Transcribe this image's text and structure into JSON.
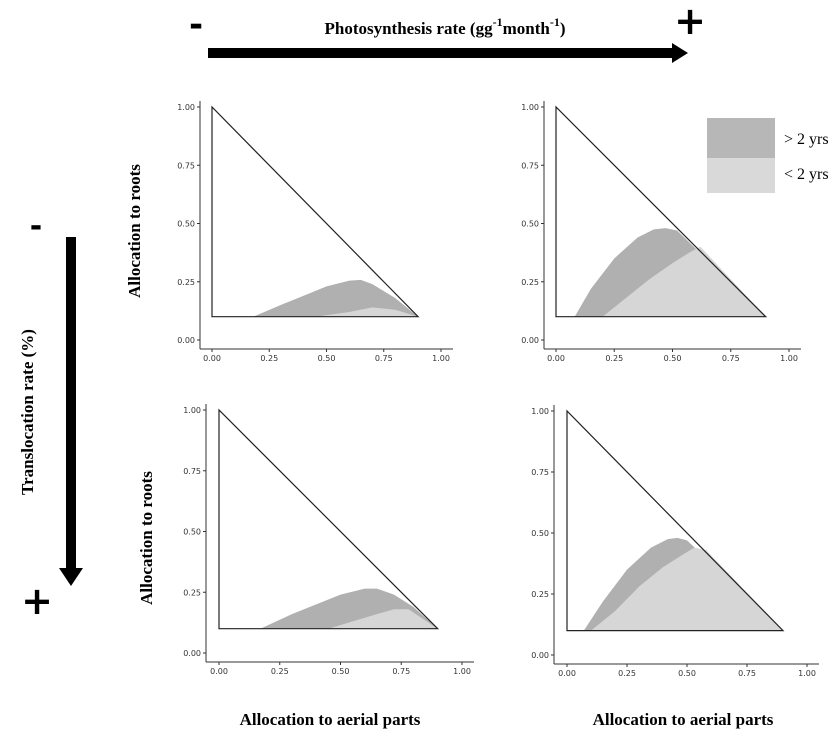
{
  "top_arrow": {
    "label": "Photosynthesis rate (gg",
    "sup1": "-1",
    "mid": "month",
    "sup2": "-1",
    "end": ")",
    "minus": "-",
    "plus": "+"
  },
  "left_arrow": {
    "label": "Translocation  rate (%)",
    "minus": "-",
    "plus": "+"
  },
  "y_label": "Allocation to roots",
  "x_label": "Allocation to aerial parts",
  "legend": {
    "items": [
      {
        "label": "> 2 yrs",
        "color": "#b7b7b7"
      },
      {
        "label": "< 2 yrs",
        "color": "#d9d9d9"
      }
    ]
  },
  "colors": {
    "older": "#b0b0b0",
    "younger": "#d6d6d6",
    "triangle": "#222222"
  },
  "chart_data": [
    {
      "type": "area",
      "panel": "top-left",
      "xlim": [
        0,
        1
      ],
      "ylim": [
        0,
        1
      ],
      "x_ticks": [
        "0.00",
        "0.25",
        "0.50",
        "0.75",
        "1.00"
      ],
      "y_ticks": [
        "0.00",
        "0.25",
        "0.50",
        "0.75",
        "1.00"
      ],
      "triangle": [
        [
          0,
          1.0
        ],
        [
          0,
          0.1
        ],
        [
          0.9,
          0.1
        ]
      ],
      "series": [
        {
          "name": "> 2 yrs",
          "x": [
            0.18,
            0.3,
            0.4,
            0.5,
            0.6,
            0.65,
            0.7,
            0.8,
            0.9
          ],
          "y": [
            0.1,
            0.15,
            0.19,
            0.23,
            0.255,
            0.258,
            0.24,
            0.18,
            0.1
          ]
        },
        {
          "name": "< 2 yrs",
          "x": [
            0.45,
            0.6,
            0.7,
            0.8,
            0.9
          ],
          "y": [
            0.1,
            0.12,
            0.14,
            0.13,
            0.1
          ]
        }
      ]
    },
    {
      "type": "area",
      "panel": "top-right",
      "xlim": [
        0,
        1
      ],
      "ylim": [
        0,
        1
      ],
      "x_ticks": [
        "0.00",
        "0.25",
        "0.50",
        "0.75",
        "1.00"
      ],
      "y_ticks": [
        "0.00",
        "0.25",
        "0.50",
        "0.75",
        "1.00"
      ],
      "triangle": [
        [
          0,
          1.0
        ],
        [
          0,
          0.1
        ],
        [
          0.9,
          0.1
        ]
      ],
      "series": [
        {
          "name": "> 2 yrs",
          "x": [
            0.08,
            0.15,
            0.25,
            0.35,
            0.42,
            0.47,
            0.52,
            0.9
          ],
          "y": [
            0.1,
            0.22,
            0.35,
            0.44,
            0.475,
            0.48,
            0.47,
            0.1
          ]
        },
        {
          "name": "< 2 yrs",
          "x": [
            0.2,
            0.3,
            0.4,
            0.5,
            0.58,
            0.62,
            0.9
          ],
          "y": [
            0.1,
            0.18,
            0.26,
            0.33,
            0.38,
            0.4,
            0.1
          ]
        }
      ]
    },
    {
      "type": "area",
      "panel": "bottom-left",
      "xlim": [
        0,
        1
      ],
      "ylim": [
        0,
        1
      ],
      "x_ticks": [
        "0.00",
        "0.25",
        "0.50",
        "0.75",
        "1.00"
      ],
      "y_ticks": [
        "0.00",
        "0.25",
        "0.50",
        "0.75",
        "1.00"
      ],
      "triangle": [
        [
          0,
          1.0
        ],
        [
          0,
          0.1
        ],
        [
          0.9,
          0.1
        ]
      ],
      "series": [
        {
          "name": "> 2 yrs",
          "x": [
            0.17,
            0.3,
            0.4,
            0.5,
            0.6,
            0.65,
            0.72,
            0.8,
            0.9
          ],
          "y": [
            0.1,
            0.16,
            0.2,
            0.24,
            0.265,
            0.265,
            0.24,
            0.19,
            0.1
          ]
        },
        {
          "name": "< 2 yrs",
          "x": [
            0.45,
            0.55,
            0.65,
            0.72,
            0.78,
            0.9
          ],
          "y": [
            0.1,
            0.13,
            0.16,
            0.18,
            0.18,
            0.1
          ]
        }
      ]
    },
    {
      "type": "area",
      "panel": "bottom-right",
      "xlim": [
        0,
        1
      ],
      "ylim": [
        0,
        1
      ],
      "x_ticks": [
        "0.00",
        "0.25",
        "0.50",
        "0.75",
        "1.00"
      ],
      "y_ticks": [
        "0.00",
        "0.25",
        "0.50",
        "0.75",
        "1.00"
      ],
      "triangle": [
        [
          0,
          1.0
        ],
        [
          0,
          0.1
        ],
        [
          0.9,
          0.1
        ]
      ],
      "series": [
        {
          "name": "> 2 yrs",
          "x": [
            0.07,
            0.15,
            0.25,
            0.35,
            0.42,
            0.46,
            0.5,
            0.9
          ],
          "y": [
            0.1,
            0.22,
            0.35,
            0.44,
            0.475,
            0.48,
            0.47,
            0.1
          ]
        },
        {
          "name": "< 2 yrs",
          "x": [
            0.1,
            0.2,
            0.3,
            0.4,
            0.48,
            0.53,
            0.58,
            0.9
          ],
          "y": [
            0.1,
            0.18,
            0.28,
            0.36,
            0.41,
            0.44,
            0.43,
            0.1
          ]
        }
      ]
    }
  ]
}
